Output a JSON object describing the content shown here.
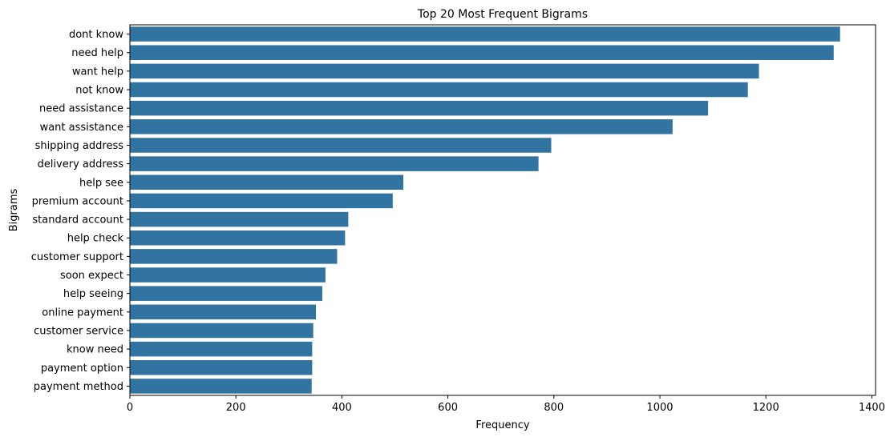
{
  "chart_data": {
    "type": "bar",
    "orientation": "horizontal",
    "title": "Top 20 Most Frequent Bigrams",
    "xlabel": "Frequency",
    "ylabel": "Bigrams",
    "xlim": [
      0,
      1400
    ],
    "xticks": [
      0,
      200,
      400,
      600,
      800,
      1000,
      1200,
      1400
    ],
    "xtick_labels": [
      "0",
      "200",
      "400",
      "600",
      "800",
      "1000",
      "1200",
      "1400"
    ],
    "grid": false,
    "legend": "none",
    "bar_color": "#3274a1",
    "categories": [
      "dont know",
      "need help",
      "want help",
      "not know",
      "need assistance",
      "want assistance",
      "shipping address",
      "delivery address",
      "help see",
      "premium account",
      "standard account",
      "help check",
      "customer support",
      "soon expect",
      "help seeing",
      "online payment",
      "customer service",
      "know need",
      "payment option",
      "payment method"
    ],
    "values": [
      1340,
      1328,
      1187,
      1166,
      1091,
      1024,
      795,
      771,
      516,
      496,
      412,
      406,
      391,
      369,
      363,
      351,
      346,
      344,
      344,
      343
    ]
  }
}
